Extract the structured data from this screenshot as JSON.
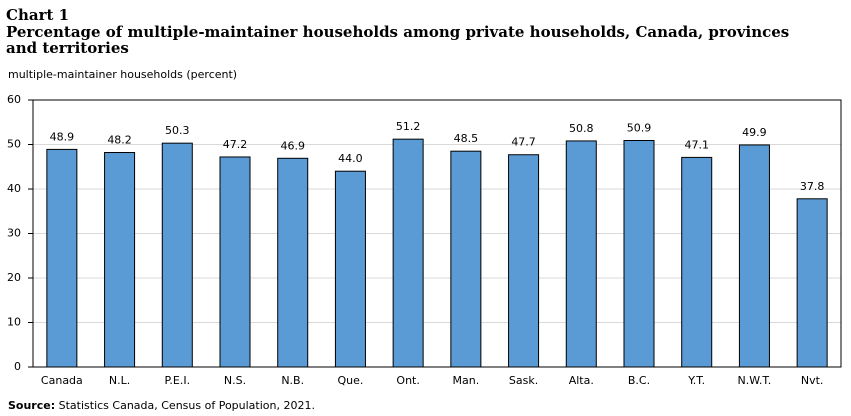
{
  "chart_data": {
    "type": "bar",
    "title": "Chart 1",
    "subtitle": "Percentage of multiple-maintainer  households among private households, Canada, provinces and territories",
    "y_label": "multiple-maintainer households (percent)",
    "categories": [
      "Canada",
      "N.L.",
      "P.E.I.",
      "N.S.",
      "N.B.",
      "Que.",
      "Ont.",
      "Man.",
      "Sask.",
      "Alta.",
      "B.C.",
      "Y.T.",
      "N.W.T.",
      "Nvt."
    ],
    "values": [
      48.9,
      48.2,
      50.3,
      47.2,
      46.9,
      44.0,
      51.2,
      48.5,
      47.7,
      50.8,
      50.9,
      47.1,
      49.9,
      37.8
    ],
    "value_labels": [
      "48.9",
      "48.2",
      "50.3",
      "47.2",
      "46.9",
      "44.0",
      "51.2",
      "48.5",
      "47.7",
      "50.8",
      "50.9",
      "47.1",
      "49.9",
      "37.8"
    ],
    "color": "#5b9bd5",
    "ylim": [
      0,
      60
    ],
    "yticks": [
      0,
      10,
      20,
      30,
      40,
      50,
      60
    ],
    "grid": true,
    "source_label": "Source:",
    "source": "Statistics Canada, Census of Population, 2021."
  }
}
